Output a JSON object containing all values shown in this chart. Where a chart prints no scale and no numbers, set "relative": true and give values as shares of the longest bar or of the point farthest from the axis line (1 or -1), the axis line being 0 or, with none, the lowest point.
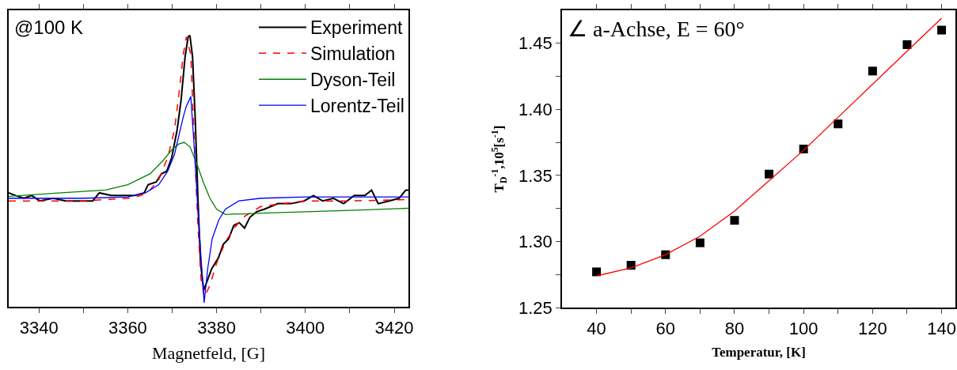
{
  "chart_data": [
    {
      "type": "line",
      "relative": true,
      "xlabel": "Magnetfeld, [G]",
      "xlim": [
        3333.2,
        3423.2
      ],
      "xticks": [
        3340,
        {
          "value": 3350,
          "label": null
        },
        3360,
        {
          "value": 3370,
          "label": null
        },
        3380,
        {
          "value": 3390,
          "label": null
        },
        3400,
        {
          "value": 3410,
          "label": null
        },
        3420
      ],
      "tick_labels": "x",
      "legend": "top right",
      "grid": false,
      "annotations": [
        "@100 K"
      ],
      "series": [
        {
          "name": "Experiment",
          "color": "#000000",
          "line_style": "solid",
          "x": [
            3333.2,
            3334.8,
            3336.6,
            3338.4,
            3340.2,
            3343.2,
            3346.1,
            3349.1,
            3352.1,
            3353.6,
            3356.3,
            3359.2,
            3361.6,
            3363.7,
            3364.6,
            3366.4,
            3367.6,
            3368.8,
            3369.9,
            3371.1,
            3372.0,
            3372.9,
            3373.6,
            3374.0,
            3374.6,
            3375.2,
            3375.8,
            3376.4,
            3377.1,
            3378.0,
            3378.9,
            3380.4,
            3381.5,
            3382.7,
            3383.9,
            3385.1,
            3386.3,
            3387.5,
            3389.0,
            3390.8,
            3393.8,
            3396.7,
            3399.7,
            3401.8,
            3403.9,
            3406.3,
            3408.6,
            3411.0,
            3413.4,
            3414.9,
            3416.4,
            3418.8,
            3421.1,
            3422.6,
            3423.2
          ],
          "values": [
            0.42,
            0.41,
            0.4,
            0.41,
            0.39,
            0.4,
            0.39,
            0.39,
            0.39,
            0.42,
            0.41,
            0.41,
            0.41,
            0.42,
            0.45,
            0.46,
            0.49,
            0.5,
            0.55,
            0.65,
            0.76,
            0.92,
            0.995,
            1.0,
            0.92,
            0.69,
            0.4,
            0.16,
            0.06,
            0.1,
            0.14,
            0.18,
            0.23,
            0.25,
            0.3,
            0.31,
            0.29,
            0.33,
            0.35,
            0.36,
            0.38,
            0.38,
            0.39,
            0.41,
            0.39,
            0.4,
            0.38,
            0.41,
            0.41,
            0.43,
            0.38,
            0.39,
            0.4,
            0.43,
            0.43
          ]
        },
        {
          "name": "Simulation",
          "color": "#ff0000",
          "line_style": "dashed",
          "x": [
            3333.2,
            3350,
            3360,
            3363,
            3365,
            3367,
            3369,
            3370.5,
            3371.5,
            3372.5,
            3373.2,
            3374.2,
            3375,
            3375.8,
            3376.5,
            3377.3,
            3378.5,
            3380,
            3382,
            3384,
            3386,
            3388,
            3390,
            3395,
            3400,
            3410,
            3423.2
          ],
          "values": [
            0.39,
            0.39,
            0.4,
            0.41,
            0.43,
            0.47,
            0.55,
            0.65,
            0.78,
            0.93,
            0.995,
            0.93,
            0.6,
            0.3,
            0.1,
            0.035,
            0.08,
            0.16,
            0.24,
            0.29,
            0.33,
            0.35,
            0.37,
            0.38,
            0.39,
            0.39,
            0.395
          ]
        },
        {
          "name": "Dyson-Teil",
          "color": "#008000",
          "line_style": "solid",
          "x": [
            3333.2,
            3345,
            3355,
            3360,
            3365,
            3368,
            3370,
            3371.5,
            3372.7,
            3374,
            3375.5,
            3377,
            3378.5,
            3380,
            3382,
            3384,
            3386,
            3390,
            3400,
            3410,
            3423.2
          ],
          "values": [
            0.407,
            0.42,
            0.43,
            0.45,
            0.49,
            0.54,
            0.58,
            0.6,
            0.606,
            0.59,
            0.53,
            0.46,
            0.4,
            0.36,
            0.34,
            0.342,
            0.342,
            0.345,
            0.35,
            0.355,
            0.363
          ]
        },
        {
          "name": "Lorentz-Teil",
          "color": "#0000ff",
          "line_style": "solid",
          "x": [
            3333.2,
            3350,
            3360,
            3364,
            3367,
            3369,
            3370.5,
            3371.5,
            3372.5,
            3373.2,
            3374.2,
            3375,
            3376,
            3377.2,
            3378,
            3379,
            3380.5,
            3382,
            3385,
            3390,
            3400,
            3423.2
          ],
          "values": [
            0.4,
            0.4,
            0.405,
            0.42,
            0.45,
            0.5,
            0.56,
            0.63,
            0.7,
            0.74,
            0.775,
            0.58,
            0.3,
            0.015,
            0.14,
            0.25,
            0.32,
            0.36,
            0.39,
            0.4,
            0.405,
            0.405
          ]
        }
      ]
    },
    {
      "type": "scatter",
      "xlabel": "Temperatur, [K]",
      "ylabel": "T$_{D}$$^{-1}$,10$^{5}$[s$^{-1}$]",
      "xlim": [
        30,
        144
      ],
      "xticks": [
        40,
        {
          "value": 50,
          "label": null
        },
        60,
        {
          "value": 70,
          "label": null
        },
        80,
        {
          "value": 90,
          "label": null
        },
        100,
        {
          "value": 110,
          "label": null
        },
        120,
        {
          "value": 130,
          "label": null
        },
        140
      ],
      "ylim": [
        1.25,
        1.475
      ],
      "yticks": [
        {
          "value": 1.25,
          "label": "1.25"
        },
        {
          "value": 1.275,
          "label": null
        },
        {
          "value": 1.3,
          "label": "1.30"
        },
        {
          "value": 1.325,
          "label": null
        },
        {
          "value": 1.35,
          "label": "1.35"
        },
        {
          "value": 1.375,
          "label": null
        },
        {
          "value": 1.4,
          "label": "1.40"
        },
        {
          "value": 1.425,
          "label": null
        },
        {
          "value": 1.45,
          "label": "1.45"
        }
      ],
      "grid": false,
      "legend": false,
      "annotations": [
        "∠ a-Achse, E = 60°"
      ],
      "series": [
        {
          "color": "#000000",
          "marker": "square",
          "x": [
            40,
            50,
            60,
            70,
            80,
            90,
            100,
            110,
            120,
            130,
            140
          ],
          "values": [
            1.277,
            1.282,
            1.29,
            1.299,
            1.316,
            1.351,
            1.37,
            1.389,
            1.429,
            1.449,
            1.46
          ]
        },
        {
          "type": "line",
          "color": "#ff0000",
          "line_style": "solid",
          "x": [
            40,
            50,
            60,
            70,
            80,
            90,
            100,
            110,
            120,
            130,
            140
          ],
          "values": [
            1.274,
            1.28,
            1.29,
            1.304,
            1.323,
            1.346,
            1.369,
            1.394,
            1.419,
            1.444,
            1.469
          ]
        }
      ]
    }
  ]
}
